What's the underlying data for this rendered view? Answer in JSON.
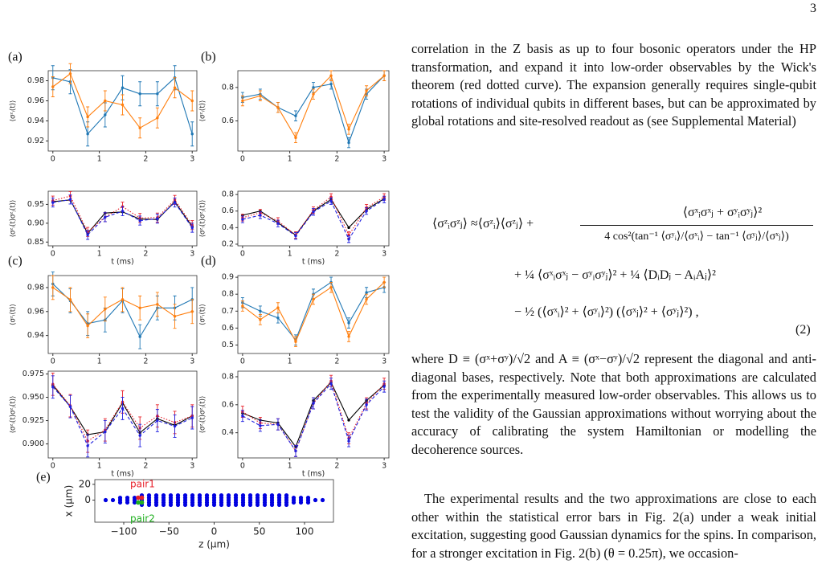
{
  "page_number": "3",
  "panel_labels": [
    "(a)",
    "(b)",
    "(c)",
    "(d)",
    "(e)"
  ],
  "figure": {
    "panels": [
      {
        "type": "line",
        "ylabel": "⟨σᶻᵢ(t)⟩",
        "x": [
          0,
          0.375,
          0.75,
          1.125,
          1.5,
          1.875,
          2.25,
          2.625,
          3.0
        ],
        "xlim": [
          -0.1,
          3.1
        ],
        "xticks": [
          0,
          1,
          2,
          3
        ],
        "ylim": [
          0.91,
          0.99
        ],
        "yticks": [
          0.92,
          0.94,
          0.96,
          0.98
        ],
        "series": [
          {
            "color": "#1f77b4",
            "style": "solid",
            "values": [
              0.983,
              0.979,
              0.927,
              0.946,
              0.973,
              0.967,
              0.967,
              0.983,
              0.927
            ],
            "yerr": 0.012
          },
          {
            "color": "#ff7f0e",
            "style": "solid",
            "values": [
              0.974,
              0.987,
              0.944,
              0.96,
              0.956,
              0.933,
              0.943,
              0.973,
              0.96
            ],
            "yerr": 0.01
          }
        ]
      },
      {
        "type": "line",
        "ylabel": "⟨σᶻᵢ(t)σᶻⱼ(t)⟩",
        "xlabel": "t (ms)",
        "x": [
          0,
          0.375,
          0.75,
          1.125,
          1.5,
          1.875,
          2.25,
          2.625,
          3.0
        ],
        "xlim": [
          -0.1,
          3.1
        ],
        "xticks": [
          0,
          1,
          2,
          3
        ],
        "ylim": [
          0.84,
          0.985
        ],
        "yticks": [
          0.85,
          {
            "value": 0.9,
            "label": "0.90"
          },
          0.95
        ],
        "series": [
          {
            "color": "#000000",
            "style": "solid",
            "values": [
              0.957,
              0.962,
              0.873,
              0.927,
              0.93,
              0.911,
              0.91,
              0.957,
              0.891
            ]
          },
          {
            "color": "#e8202a",
            "style": "dotted",
            "values": [
              0.96,
              0.972,
              0.877,
              0.916,
              0.944,
              0.914,
              0.915,
              0.962,
              0.895
            ],
            "yerr": 0.012
          },
          {
            "color": "#2020e0",
            "style": "dashed",
            "values": [
              0.955,
              0.963,
              0.869,
              0.916,
              0.932,
              0.907,
              0.912,
              0.955,
              0.888
            ],
            "yerr": 0.012
          }
        ]
      },
      {
        "type": "line",
        "ylabel": "⟨σᶻᵢ(t)⟩",
        "x": [
          0,
          0.375,
          0.75,
          1.125,
          1.5,
          1.875,
          2.25,
          2.625,
          3.0
        ],
        "xlim": [
          -0.1,
          3.1
        ],
        "xticks": [
          0,
          1,
          2,
          3
        ],
        "ylim": [
          0.42,
          0.9
        ],
        "yticks": [
          0.6,
          0.8
        ],
        "series": [
          {
            "color": "#1f77b4",
            "style": "solid",
            "values": [
              0.74,
              0.76,
              0.68,
              0.63,
              0.8,
              0.82,
              0.47,
              0.76,
              0.87
            ],
            "yerr": 0.03
          },
          {
            "color": "#ff7f0e",
            "style": "solid",
            "values": [
              0.72,
              0.75,
              0.68,
              0.5,
              0.76,
              0.87,
              0.55,
              0.78,
              0.87
            ],
            "yerr": 0.03
          }
        ]
      },
      {
        "type": "line",
        "ylabel": "⟨σᶻᵢ(t)σᶻⱼ(t)⟩",
        "xlabel": "t (ms)",
        "x": [
          0,
          0.375,
          0.75,
          1.125,
          1.5,
          1.875,
          2.25,
          2.625,
          3.0
        ],
        "xlim": [
          -0.1,
          3.1
        ],
        "xticks": [
          0,
          1,
          2,
          3
        ],
        "ylim": [
          0.18,
          0.84
        ],
        "yticks": [
          0.2,
          0.4,
          0.6,
          0.8
        ],
        "series": [
          {
            "color": "#000000",
            "style": "solid",
            "values": [
              0.55,
              0.6,
              0.46,
              0.31,
              0.6,
              0.74,
              0.4,
              0.62,
              0.75
            ]
          },
          {
            "color": "#e8202a",
            "style": "dotted",
            "values": [
              0.52,
              0.58,
              0.48,
              0.31,
              0.61,
              0.77,
              0.31,
              0.64,
              0.77
            ],
            "yerr": 0.04
          },
          {
            "color": "#2020e0",
            "style": "dashed",
            "values": [
              0.5,
              0.55,
              0.45,
              0.3,
              0.59,
              0.72,
              0.26,
              0.6,
              0.74
            ],
            "yerr": 0.04
          }
        ]
      },
      {
        "type": "line",
        "ylabel": "⟨σᶻᵢ(t)⟩",
        "x": [
          0,
          0.375,
          0.75,
          1.125,
          1.5,
          1.875,
          2.25,
          2.625,
          3.0
        ],
        "xlim": [
          -0.1,
          3.1
        ],
        "xticks": [
          0,
          1,
          2,
          3
        ],
        "ylim": [
          0.925,
          0.99
        ],
        "yticks": [
          0.94,
          0.96,
          0.98
        ],
        "series": [
          {
            "color": "#1f77b4",
            "style": "solid",
            "values": [
              0.983,
              0.969,
              0.95,
              0.953,
              0.969,
              0.939,
              0.963,
              0.963,
              0.97
            ],
            "yerr": 0.01
          },
          {
            "color": "#ff7f0e",
            "style": "solid",
            "values": [
              0.98,
              0.97,
              0.948,
              0.962,
              0.97,
              0.963,
              0.966,
              0.956,
              0.96
            ],
            "yerr": 0.01
          }
        ]
      },
      {
        "type": "line",
        "ylabel": "⟨σᶻᵢ(t)σᶻⱼ(t)⟩",
        "xlabel": "t (ms)",
        "x": [
          0,
          0.375,
          0.75,
          1.125,
          1.5,
          1.875,
          2.25,
          2.625,
          3.0
        ],
        "xlim": [
          -0.1,
          3.1
        ],
        "xticks": [
          0,
          1,
          2,
          3
        ],
        "ylim": [
          0.885,
          0.978
        ],
        "yticks": [
          {
            "value": 0.9,
            "label": "0.900"
          },
          0.925,
          {
            "value": 0.95,
            "label": "0.950"
          },
          0.975
        ],
        "series": [
          {
            "color": "#000000",
            "style": "solid",
            "values": [
              0.963,
              0.94,
              0.91,
              0.913,
              0.944,
              0.912,
              0.927,
              0.92,
              0.93
            ]
          },
          {
            "color": "#e8202a",
            "style": "dotted",
            "values": [
              0.964,
              0.941,
              0.903,
              0.915,
              0.945,
              0.917,
              0.93,
              0.923,
              0.93
            ],
            "yerr": 0.012
          },
          {
            "color": "#2020e0",
            "style": "dashed",
            "values": [
              0.961,
              0.94,
              0.898,
              0.913,
              0.938,
              0.909,
              0.925,
              0.919,
              0.928
            ],
            "yerr": 0.012
          }
        ]
      },
      {
        "type": "line",
        "ylabel": "⟨σᶻᵢ(t)⟩",
        "x": [
          0,
          0.375,
          0.75,
          1.125,
          1.5,
          1.875,
          2.25,
          2.625,
          3.0
        ],
        "xlim": [
          -0.1,
          3.1
        ],
        "xticks": [
          0,
          1,
          2,
          3
        ],
        "ylim": [
          0.45,
          0.91
        ],
        "yticks": [
          0.5,
          0.6,
          0.7,
          0.8,
          0.9
        ],
        "series": [
          {
            "color": "#1f77b4",
            "style": "solid",
            "values": [
              0.75,
              0.7,
              0.66,
              0.53,
              0.8,
              0.87,
              0.63,
              0.81,
              0.84
            ],
            "yerr": 0.03
          },
          {
            "color": "#ff7f0e",
            "style": "solid",
            "values": [
              0.73,
              0.65,
              0.72,
              0.52,
              0.77,
              0.84,
              0.55,
              0.77,
              0.87
            ],
            "yerr": 0.03
          }
        ]
      },
      {
        "type": "line",
        "ylabel": "⟨σᶻᵢ(t)σᶻⱼ(t)⟩",
        "xlabel": "t (ms)",
        "x": [
          0,
          0.375,
          0.75,
          1.125,
          1.5,
          1.875,
          2.25,
          2.625,
          3.0
        ],
        "xlim": [
          -0.1,
          3.1
        ],
        "xticks": [
          0,
          1,
          2,
          3
        ],
        "ylim": [
          0.22,
          0.84
        ],
        "yticks": [
          0.4,
          0.6,
          0.8
        ],
        "series": [
          {
            "color": "#000000",
            "style": "solid",
            "values": [
              0.54,
              0.49,
              0.47,
              0.3,
              0.63,
              0.76,
              0.49,
              0.63,
              0.74
            ]
          },
          {
            "color": "#e8202a",
            "style": "dotted",
            "values": [
              0.55,
              0.47,
              0.46,
              0.27,
              0.61,
              0.77,
              0.36,
              0.61,
              0.75
            ],
            "yerr": 0.04
          },
          {
            "color": "#2020e0",
            "style": "dashed",
            "values": [
              0.52,
              0.45,
              0.46,
              0.27,
              0.61,
              0.75,
              0.34,
              0.6,
              0.73
            ],
            "yerr": 0.04
          }
        ]
      }
    ],
    "crystal": {
      "type": "scatter",
      "xlabel": "z (μm)",
      "ylabel": "x (μm)",
      "color": "#0000e0",
      "xlim": [
        -132,
        132
      ],
      "ylim": [
        -28,
        26
      ],
      "xticks": [
        {
          "value": -100,
          "label": "−100"
        },
        {
          "value": -50,
          "label": "−50"
        },
        0,
        50,
        100
      ],
      "yticks": [
        0,
        20
      ],
      "rows": [
        {
          "y": -6,
          "x": [
            -80,
            -72,
            -64,
            -56,
            -48,
            -40,
            -32,
            -24,
            -16,
            -8,
            0,
            8,
            16,
            24,
            32,
            40,
            48,
            56,
            64,
            72,
            80
          ]
        },
        {
          "y": -3,
          "x": [
            -104,
            -96,
            -88,
            -80,
            -72,
            -64,
            -56,
            -48,
            -40,
            -32,
            -24,
            -16,
            -8,
            0,
            8,
            16,
            24,
            32,
            40,
            48,
            56,
            64,
            72,
            80,
            88,
            96,
            104
          ]
        },
        {
          "y": 0,
          "x": [
            -120,
            -112,
            -104,
            -96,
            -88,
            -80,
            -72,
            -64,
            -56,
            -48,
            -40,
            -32,
            -24,
            -16,
            -8,
            0,
            8,
            16,
            24,
            32,
            40,
            48,
            56,
            64,
            72,
            80,
            88,
            96,
            104,
            112,
            120
          ]
        },
        {
          "y": 3,
          "x": [
            -104,
            -96,
            -88,
            -80,
            -72,
            -64,
            -56,
            -48,
            -40,
            -32,
            -24,
            -16,
            -8,
            0,
            8,
            16,
            24,
            32,
            40,
            48,
            56,
            64,
            72,
            80,
            88,
            96,
            104
          ]
        },
        {
          "y": 6,
          "x": [
            -80,
            -72,
            -64,
            -56,
            -48,
            -40,
            -32,
            -24,
            -16,
            -8,
            0,
            8,
            16,
            24,
            32,
            40,
            48,
            56,
            64,
            72,
            80
          ]
        }
      ],
      "pairs": [
        {
          "label": "pair1",
          "color": "#e8202a",
          "x": [
            -84,
            -80
          ],
          "y": [
            3,
            3
          ]
        },
        {
          "label": "pair2",
          "color": "#20b020",
          "x": [
            -84,
            -80
          ],
          "y": [
            -3,
            -3
          ]
        }
      ]
    }
  },
  "text": {
    "paragraph1": "correlation in the Z basis as up to four bosonic operators under the HP transformation, and expand it into low-order observables by the Wick's theorem (red dotted curve). The expansion generally requires single-qubit rotations of individual qubits in different bases, but can be approximated by global rotations and site-resolved readout as (see Supplemental Material)",
    "equation": {
      "lhs": "⟨σᶻᵢσᶻⱼ⟩ ≈⟨σᶻᵢ⟩⟨σᶻⱼ⟩ +",
      "numerator": "⟨σˣᵢσˣⱼ + σʸᵢσʸⱼ⟩²",
      "denominator": "4 cos²(tan⁻¹ ⟨σʸᵢ⟩/⟨σˣᵢ⟩ − tan⁻¹ ⟨σʸⱼ⟩/⟨σˣⱼ⟩)",
      "line2": "+ ¼ ⟨σˣᵢσˣⱼ − σʸᵢσʸⱼ⟩² + ¼ ⟨DᵢDⱼ − AᵢAⱼ⟩²",
      "line3": "− ½ (⟨σˣᵢ⟩² + ⟨σʸᵢ⟩²) (⟨σˣⱼ⟩² + ⟨σʸⱼ⟩²) ,",
      "number": "(2)"
    },
    "paragraph2": "where D ≡ (σˣ+σʸ)/√2 and A ≡ (σˣ−σʸ)/√2 represent the diagonal and anti-diagonal bases, respectively. Note that both approximations are calculated from the experimentally measured low-order observables. This allows us to test the validity of the Gaussian approximations without worrying about the accuracy of calibrating the system Hamiltonian or modelling the decoherence sources.",
    "paragraph3": "The experimental results and the two approximations are close to each other within the statistical error bars in Fig. 2(a) under a weak initial excitation, suggesting good Gaussian dynamics for the spins. In comparison, for a stronger excitation in Fig. 2(b) (θ = 0.25π), we occasion-"
  }
}
